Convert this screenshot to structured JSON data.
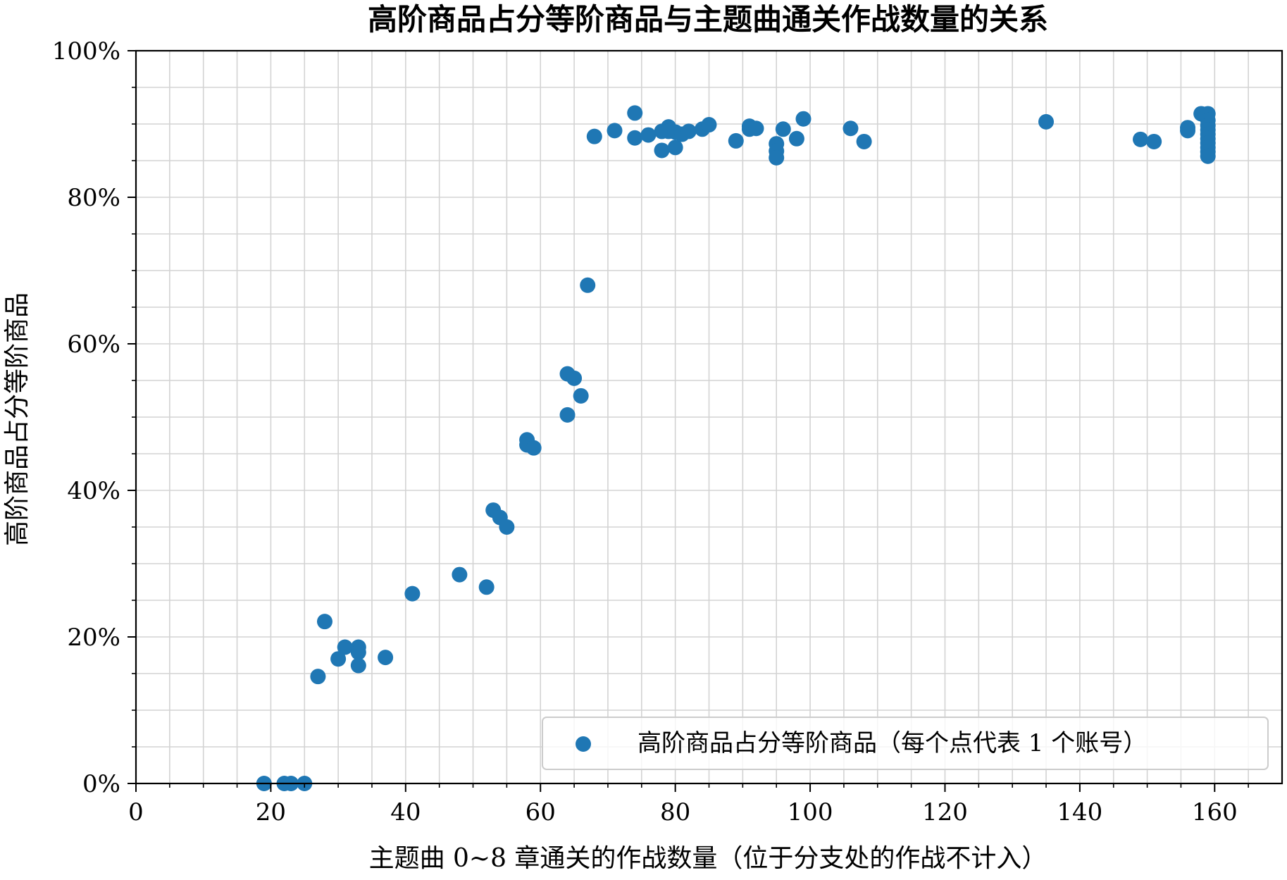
{
  "chart_data": {
    "type": "scatter",
    "title": "高阶商品占分等阶商品与主题曲通关作战数量的关系",
    "xlabel": "主题曲 0~8 章通关的作战数量（位于分支处的作战不计入）",
    "ylabel": "高阶商品占分等阶商品",
    "xlim": [
      0,
      170
    ],
    "ylim": [
      0,
      100
    ],
    "x_ticks": [
      0,
      20,
      40,
      60,
      80,
      100,
      120,
      140,
      160
    ],
    "x_tick_labels": [
      "0",
      "20",
      "40",
      "60",
      "80",
      "100",
      "120",
      "140",
      "160"
    ],
    "x_minor_step": 5,
    "y_ticks": [
      0,
      20,
      40,
      60,
      80,
      100
    ],
    "y_tick_labels": [
      "0%",
      "20%",
      "40%",
      "60%",
      "80%",
      "100%"
    ],
    "y_minor_step": 5,
    "grid": true,
    "legend_position": "lower-right",
    "series": [
      {
        "name": "高阶商品占分等阶商品（每个点代表 1 个账号）",
        "color": "#1f77b4",
        "points": [
          [
            19,
            0
          ],
          [
            22,
            0
          ],
          [
            23,
            0
          ],
          [
            25,
            0
          ],
          [
            27,
            14.6
          ],
          [
            28,
            22.1
          ],
          [
            30,
            17.0
          ],
          [
            31,
            18.6
          ],
          [
            33,
            18.6
          ],
          [
            33,
            17.9
          ],
          [
            33,
            16.1
          ],
          [
            37,
            17.2
          ],
          [
            41,
            25.9
          ],
          [
            48,
            28.5
          ],
          [
            52,
            26.8
          ],
          [
            53,
            37.3
          ],
          [
            54,
            36.3
          ],
          [
            55,
            35.0
          ],
          [
            58,
            46.9
          ],
          [
            58,
            46.2
          ],
          [
            59,
            45.8
          ],
          [
            64,
            55.9
          ],
          [
            64,
            50.3
          ],
          [
            65,
            55.3
          ],
          [
            66,
            52.9
          ],
          [
            67,
            68.0
          ],
          [
            68,
            88.3
          ],
          [
            71,
            89.1
          ],
          [
            74,
            91.5
          ],
          [
            74,
            88.1
          ],
          [
            76,
            88.5
          ],
          [
            78,
            89.0
          ],
          [
            78,
            86.4
          ],
          [
            79,
            89.6
          ],
          [
            79,
            89.0
          ],
          [
            80,
            88.9
          ],
          [
            80,
            86.8
          ],
          [
            81,
            88.6
          ],
          [
            82,
            89.0
          ],
          [
            84,
            89.3
          ],
          [
            85,
            89.9
          ],
          [
            89,
            87.7
          ],
          [
            91,
            89.7
          ],
          [
            91,
            89.3
          ],
          [
            92,
            89.4
          ],
          [
            95,
            87.3
          ],
          [
            95,
            86.3
          ],
          [
            95,
            85.4
          ],
          [
            96,
            89.3
          ],
          [
            98,
            88.0
          ],
          [
            99,
            90.7
          ],
          [
            106,
            89.4
          ],
          [
            108,
            87.6
          ],
          [
            135,
            90.3
          ],
          [
            149,
            87.9
          ],
          [
            151,
            87.6
          ],
          [
            156,
            89.5
          ],
          [
            156,
            89.1
          ],
          [
            158,
            91.4
          ],
          [
            159,
            91.4
          ],
          [
            159,
            90.5
          ],
          [
            159,
            89.8
          ],
          [
            159,
            89.2
          ],
          [
            159,
            88.6
          ],
          [
            159,
            88.0
          ],
          [
            159,
            87.4
          ],
          [
            159,
            86.8
          ],
          [
            159,
            86.2
          ],
          [
            159,
            85.6
          ]
        ]
      }
    ]
  }
}
